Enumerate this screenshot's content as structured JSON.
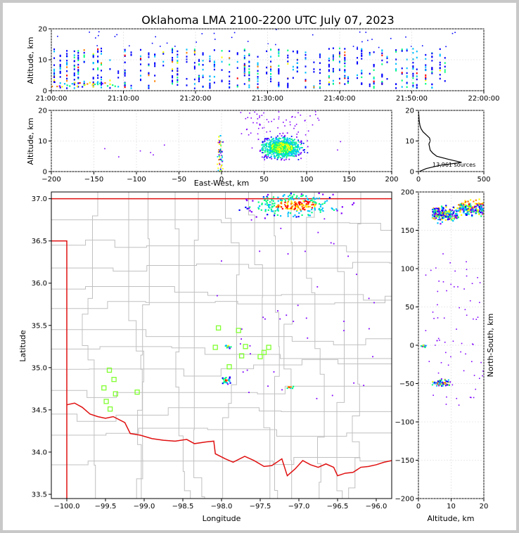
{
  "figure": {
    "title": "Oklahoma LMA 2100-2200 UTC July 07, 2023"
  },
  "colors": {
    "border": "#c8c8c8",
    "state_line": "#e01010",
    "county_line": "#c0c0c0",
    "station_marker": "#80ff30",
    "density_scale": [
      "#0000ff",
      "#8000ff",
      "#00c0ff",
      "#00ff80",
      "#ffff00",
      "#ff8000",
      "#ff0000"
    ]
  },
  "chart_data": [
    {
      "id": "time-height",
      "type": "heatmap",
      "title": "",
      "xlabel": "",
      "ylabel": "Altitude, km",
      "xlim": [
        "21:00:00",
        "22:00:00"
      ],
      "ylim": [
        0,
        20
      ],
      "xticks": [
        "21:00:00",
        "21:10:00",
        "21:20:00",
        "21:30:00",
        "21:40:00",
        "21:50:00",
        "22:00:00"
      ],
      "yticks": [
        "0",
        "10",
        "20"
      ],
      "active_time_range_min": [
        0,
        55
      ],
      "altitude_band_km": [
        1,
        14
      ]
    },
    {
      "id": "ew-altitude",
      "type": "heatmap",
      "xlabel": "East-West, km",
      "ylabel": "Altitude, km",
      "xlim": [
        -200,
        200
      ],
      "ylim": [
        0,
        20
      ],
      "xticks": [
        "−200",
        "−150",
        "−100",
        "−50",
        "0",
        "50",
        "100",
        "150",
        "200"
      ],
      "yticks": [
        "0",
        "10",
        "20"
      ],
      "core_center_km": [
        70,
        8
      ]
    },
    {
      "id": "altitude-histogram",
      "type": "line",
      "xlim": [
        0,
        500
      ],
      "ylim": [
        0,
        20
      ],
      "xticks": [
        "0",
        "500"
      ],
      "yticks": [
        "0",
        "10",
        "20"
      ],
      "annotation": "13,961 sources",
      "profile": [
        {
          "alt": 0,
          "count": 5
        },
        {
          "alt": 1,
          "count": 60
        },
        {
          "alt": 2,
          "count": 160
        },
        {
          "alt": 3,
          "count": 330
        },
        {
          "alt": 4,
          "count": 230
        },
        {
          "alt": 5,
          "count": 140
        },
        {
          "alt": 6,
          "count": 110
        },
        {
          "alt": 7,
          "count": 90
        },
        {
          "alt": 8,
          "count": 85
        },
        {
          "alt": 9,
          "count": 80
        },
        {
          "alt": 10,
          "count": 90
        },
        {
          "alt": 11,
          "count": 85
        },
        {
          "alt": 12,
          "count": 60
        },
        {
          "alt": 13,
          "count": 35
        },
        {
          "alt": 14,
          "count": 20
        },
        {
          "alt": 15,
          "count": 12
        },
        {
          "alt": 16,
          "count": 8
        },
        {
          "alt": 17,
          "count": 5
        },
        {
          "alt": 18,
          "count": 4
        },
        {
          "alt": 19,
          "count": 2
        },
        {
          "alt": 20,
          "count": 1
        }
      ]
    },
    {
      "id": "plan-view",
      "type": "scatter",
      "xlabel": "Longitude",
      "ylabel": "Latitude",
      "xlim": [
        -100.2,
        -95.8
      ],
      "ylim": [
        33.45,
        37.08
      ],
      "xticks": [
        "−100.0",
        "−99.5",
        "−99.0",
        "−98.5",
        "−98.0",
        "−97.5",
        "−97.0",
        "−96.5",
        "−96.0"
      ],
      "yticks": [
        "33.5",
        "34.0",
        "34.5",
        "35.0",
        "35.5",
        "36.0",
        "36.5",
        "37.0"
      ],
      "stations": [
        [
          -99.45,
          34.97
        ],
        [
          -99.39,
          34.86
        ],
        [
          -99.52,
          34.76
        ],
        [
          -99.37,
          34.69
        ],
        [
          -99.49,
          34.6
        ],
        [
          -99.44,
          34.51
        ],
        [
          -99.09,
          34.71
        ],
        [
          -98.08,
          35.24
        ],
        [
          -98.04,
          35.47
        ],
        [
          -97.78,
          35.44
        ],
        [
          -97.69,
          35.25
        ],
        [
          -97.74,
          35.14
        ],
        [
          -97.9,
          35.01
        ],
        [
          -97.5,
          35.13
        ],
        [
          -97.45,
          35.18
        ],
        [
          -97.39,
          35.24
        ]
      ],
      "clusters": [
        {
          "lon": -97.05,
          "lat": 36.93,
          "lon_spread": 0.55,
          "lat_spread": 0.12,
          "n": 260
        },
        {
          "lon": -97.95,
          "lat": 34.86,
          "lon_spread": 0.05,
          "lat_spread": 0.04,
          "n": 28
        },
        {
          "lon": -97.93,
          "lat": 35.26,
          "lon_spread": 0.04,
          "lat_spread": 0.02,
          "n": 12
        },
        {
          "lon": -97.12,
          "lat": 34.78,
          "lon_spread": 0.05,
          "lat_spread": 0.02,
          "n": 10
        }
      ]
    },
    {
      "id": "ns-altitude",
      "type": "heatmap",
      "xlabel": "Altitude, km",
      "ylabel": "North-South, km",
      "xlim": [
        0,
        20
      ],
      "ylim": [
        -200,
        200
      ],
      "xticks": [
        "0",
        "10",
        "20"
      ],
      "yticks": [
        "−200",
        "−150",
        "−100",
        "−50",
        "0",
        "50",
        "100",
        "150",
        "200"
      ]
    }
  ]
}
